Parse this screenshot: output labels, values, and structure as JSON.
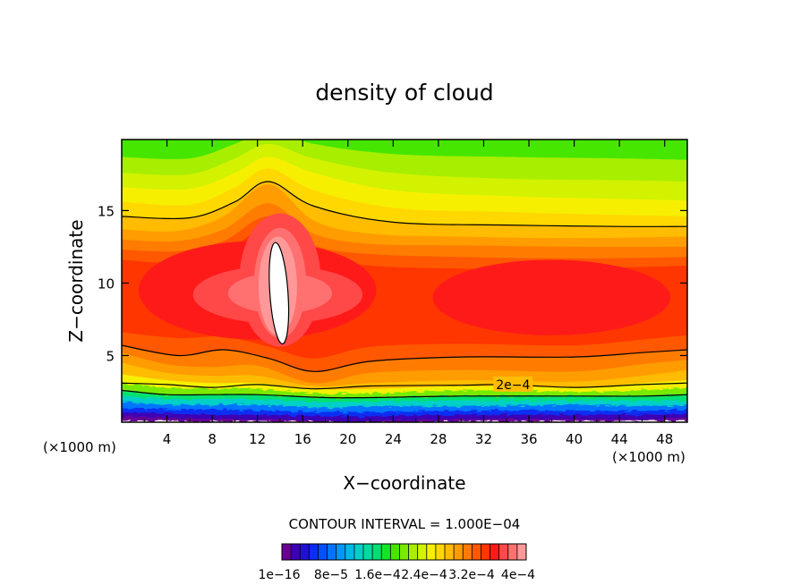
{
  "chart_data": {
    "type": "heatmap",
    "title": "density of cloud",
    "xlabel": "X−coordinate",
    "ylabel": "Z−coordinate",
    "x_unit_left": "(×1000 m)",
    "x_unit_right": "(×1000 m)",
    "xlim": [
      0,
      50
    ],
    "ylim": [
      0.4,
      19.9
    ],
    "x_ticks": [
      4,
      8,
      12,
      16,
      20,
      24,
      28,
      32,
      36,
      40,
      44,
      48
    ],
    "x_tick_labels": [
      "4",
      "8",
      "12",
      "16",
      "20",
      "24",
      "28",
      "32",
      "36",
      "40",
      "44",
      "48"
    ],
    "y_ticks": [
      5,
      10,
      15
    ],
    "y_tick_labels": [
      "5",
      "10",
      "15"
    ],
    "contour_line_label": "2e−4",
    "contour_interval_text": "CONTOUR INTERVAL = 1.000E−04",
    "colorbar": {
      "min": 1e-16,
      "max": 0.0004,
      "labels": [
        "1e−16",
        "8e−5",
        "1.6e−4",
        "2.4e−4",
        "3.2e−4",
        "4e−4"
      ],
      "colors": [
        "#6a0096",
        "#3e00b4",
        "#1f10d6",
        "#0a2ef2",
        "#0050ff",
        "#0074ff",
        "#0098f8",
        "#00b8e8",
        "#00d0c8",
        "#00dca0",
        "#00e070",
        "#14e428",
        "#46e600",
        "#78ea00",
        "#a8ee00",
        "#d2f200",
        "#f6f000",
        "#ffd800",
        "#ffbc00",
        "#ff9c00",
        "#ff7c00",
        "#ff5800",
        "#ff3600",
        "#ff1a1a",
        "#ff4848",
        "#ff7070",
        "#ff9898"
      ]
    }
  }
}
